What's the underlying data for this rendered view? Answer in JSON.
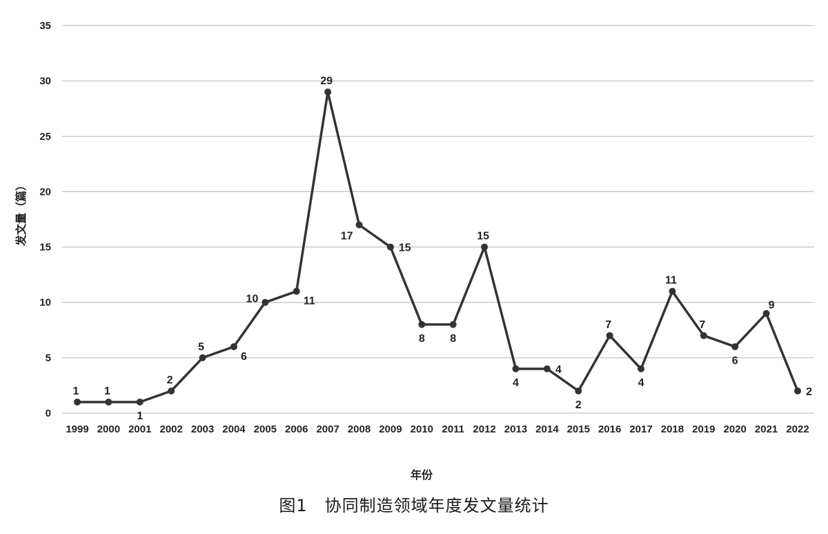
{
  "caption": "图1　协同制造领域年度发文量统计",
  "chart_data": {
    "type": "line",
    "title": "",
    "xlabel": "年份",
    "ylabel": "发文量（篇）",
    "ylim": [
      0,
      35
    ],
    "yticks": [
      0,
      5,
      10,
      15,
      20,
      25,
      30,
      35
    ],
    "grid": true,
    "categories": [
      "1999",
      "2000",
      "2001",
      "2002",
      "2003",
      "2004",
      "2005",
      "2006",
      "2007",
      "2008",
      "2009",
      "2010",
      "2011",
      "2012",
      "2013",
      "2014",
      "2015",
      "2016",
      "2017",
      "2018",
      "2019",
      "2020",
      "2021",
      "2022"
    ],
    "series": [
      {
        "values": [
          1,
          1,
          1,
          2,
          5,
          6,
          10,
          11,
          29,
          17,
          15,
          8,
          8,
          15,
          4,
          4,
          2,
          7,
          4,
          11,
          7,
          6,
          9,
          2
        ]
      }
    ],
    "label_positions": [
      "above",
      "above",
      "below",
      "above",
      "above",
      "below-right",
      "left",
      "below-right",
      "above",
      "below-left",
      "right",
      "below",
      "below",
      "above",
      "below",
      "right",
      "below",
      "above",
      "below",
      "above",
      "above",
      "below",
      "above-right",
      "right"
    ],
    "colors": {
      "line": "#333333",
      "grid": "#b3b3b3"
    }
  }
}
